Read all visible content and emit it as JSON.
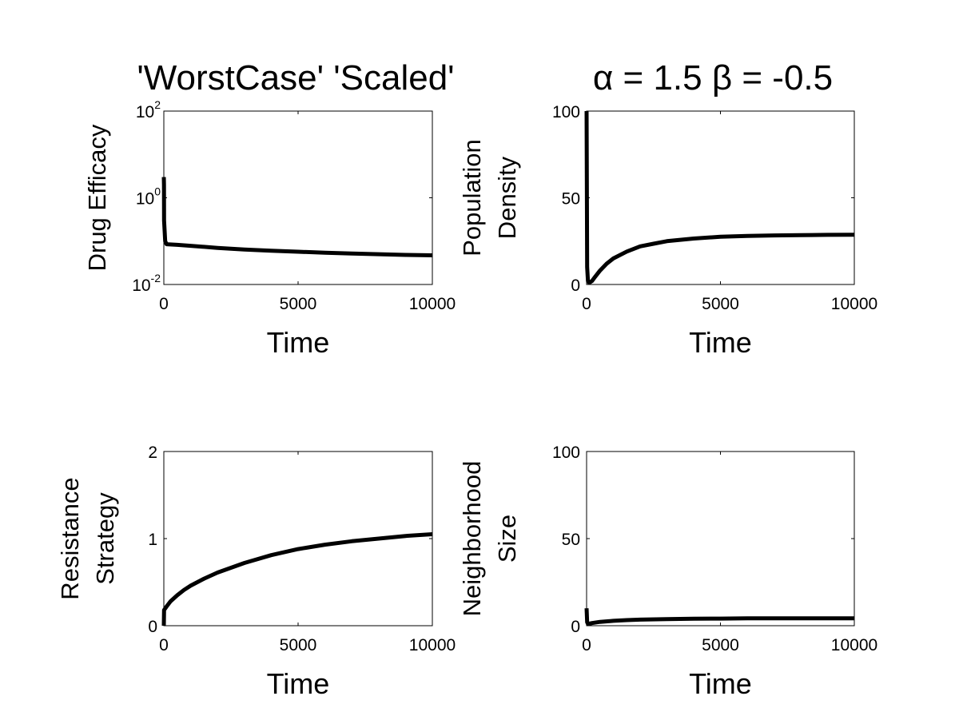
{
  "chart_data": [
    {
      "type": "line",
      "title": "'WorstCase' 'Scaled'",
      "xlabel": "Time",
      "ylabel": [
        "Drug Efficacy"
      ],
      "yscale": "log",
      "xlim": [
        0,
        10000
      ],
      "ylim": [
        0.01,
        100
      ],
      "xticks": [
        "0",
        "5000",
        "10000"
      ],
      "yticks": [
        {
          "base": "10",
          "exp": "-2"
        },
        {
          "base": "10",
          "exp": "0"
        },
        {
          "base": "10",
          "exp": "2"
        }
      ],
      "line_color": "#000000",
      "series": [
        {
          "x": [
            0,
            5,
            10,
            50,
            100,
            500,
            1000,
            2000,
            3000,
            4000,
            5000,
            6000,
            7000,
            8000,
            9000,
            10000
          ],
          "y": [
            3.0,
            2.0,
            0.3,
            0.1,
            0.085,
            0.082,
            0.078,
            0.07,
            0.064,
            0.06,
            0.057,
            0.054,
            0.052,
            0.05,
            0.048,
            0.047
          ]
        }
      ]
    },
    {
      "type": "line",
      "title": "α = 1.5 β = -0.5",
      "xlabel": "Time",
      "ylabel": [
        "Population",
        "Density"
      ],
      "yscale": "linear",
      "xlim": [
        0,
        10000
      ],
      "ylim": [
        0,
        100
      ],
      "xticks": [
        "0",
        "5000",
        "10000"
      ],
      "yticks": [
        "0",
        "50",
        "100"
      ],
      "line_color": "#000000",
      "series": [
        {
          "x": [
            0,
            20,
            50,
            100,
            200,
            300,
            500,
            750,
            1000,
            1500,
            2000,
            2500,
            3000,
            4000,
            5000,
            6000,
            7000,
            8000,
            9000,
            10000
          ],
          "y": [
            100,
            10,
            2,
            1,
            2,
            4,
            8,
            12,
            15,
            19,
            22,
            23.5,
            25,
            26.5,
            27.5,
            28,
            28.3,
            28.5,
            28.6,
            28.7
          ]
        }
      ]
    },
    {
      "type": "line",
      "title": "",
      "xlabel": "Time",
      "ylabel": [
        "Resistance",
        "Strategy"
      ],
      "yscale": "linear",
      "xlim": [
        0,
        10000
      ],
      "ylim": [
        0,
        2
      ],
      "xticks": [
        "0",
        "5000",
        "10000"
      ],
      "yticks": [
        "0",
        "1",
        "2"
      ],
      "line_color": "#000000",
      "series": [
        {
          "x": [
            0,
            10,
            100,
            250,
            500,
            750,
            1000,
            1500,
            2000,
            3000,
            4000,
            5000,
            6000,
            7000,
            8000,
            9000,
            10000
          ],
          "y": [
            0,
            0.18,
            0.22,
            0.28,
            0.35,
            0.41,
            0.46,
            0.54,
            0.61,
            0.72,
            0.81,
            0.88,
            0.93,
            0.97,
            1.0,
            1.03,
            1.05
          ]
        }
      ]
    },
    {
      "type": "line",
      "title": "",
      "xlabel": "Time",
      "ylabel": [
        "Neighborhood",
        "Size"
      ],
      "yscale": "linear",
      "xlim": [
        0,
        10000
      ],
      "ylim": [
        0,
        100
      ],
      "xticks": [
        "0",
        "5000",
        "10000"
      ],
      "yticks": [
        "0",
        "50",
        "100"
      ],
      "line_color": "#000000",
      "series": [
        {
          "x": [
            0,
            20,
            50,
            100,
            200,
            500,
            1000,
            1500,
            2000,
            3000,
            4000,
            5000,
            6000,
            7000,
            8000,
            9000,
            10000
          ],
          "y": [
            10,
            2,
            1,
            1.2,
            1.5,
            2.2,
            2.8,
            3.2,
            3.5,
            3.8,
            4.0,
            4.1,
            4.2,
            4.2,
            4.2,
            4.2,
            4.2
          ]
        }
      ]
    }
  ]
}
